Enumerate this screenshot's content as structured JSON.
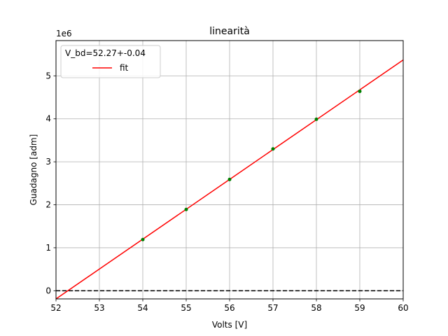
{
  "chart_data": {
    "type": "line",
    "title": "linearità",
    "xlabel": "Volts [V]",
    "ylabel": "Guadagno [adm]",
    "y_offset_label": "1e6",
    "xlim": [
      52,
      60
    ],
    "ylim": [
      -0.19,
      5.82
    ],
    "y_scale_factor": 1000000,
    "x_ticks": [
      "52",
      "53",
      "54",
      "55",
      "56",
      "57",
      "58",
      "59",
      "60"
    ],
    "y_ticks": [
      "0",
      "1",
      "2",
      "3",
      "4",
      "5"
    ],
    "grid": true,
    "legend": {
      "title": "V_bd=52.27+-0.04",
      "placement": "top-left",
      "entries": [
        "fit"
      ]
    },
    "series": [
      {
        "kind": "scatter",
        "color": "#008000",
        "x": [
          54,
          55,
          56,
          57,
          58,
          59
        ],
        "y": [
          1.19,
          1.89,
          2.59,
          3.3,
          3.99,
          4.64
        ]
      },
      {
        "name": "fit",
        "kind": "line",
        "color": "#ff0000",
        "x": [
          52,
          60
        ],
        "y": [
          -0.19,
          5.37
        ]
      },
      {
        "kind": "line",
        "style": "dashed",
        "color": "#000000",
        "x": [
          52,
          60
        ],
        "y": [
          0,
          0
        ]
      }
    ]
  }
}
